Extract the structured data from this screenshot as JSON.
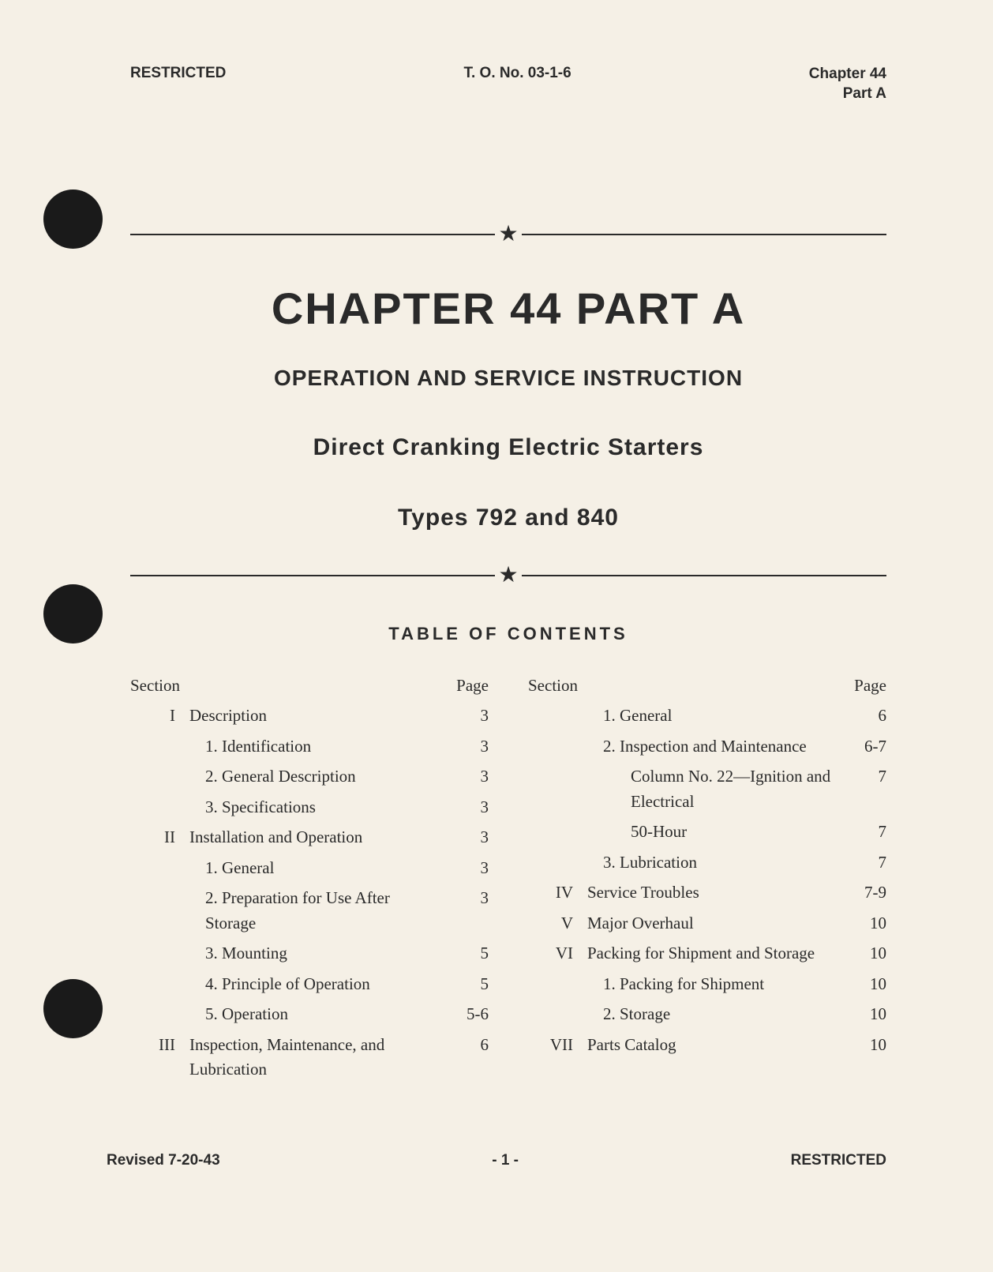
{
  "header": {
    "classification": "RESTRICTED",
    "doc_number": "T. O. No. 03-1-6",
    "chapter_line1": "Chapter 44",
    "chapter_line2": "Part A"
  },
  "title": {
    "chapter": "CHAPTER 44  PART A",
    "subtitle1": "OPERATION AND SERVICE INSTRUCTION",
    "subtitle2": "Direct Cranking Electric Starters",
    "subtitle3": "Types 792 and 840"
  },
  "toc": {
    "heading": "TABLE OF CONTENTS",
    "section_label": "Section",
    "page_label": "Page",
    "left": [
      {
        "section": "I",
        "title": "Description",
        "page": "3",
        "indent": 0
      },
      {
        "section": "",
        "title": "1. Identification",
        "page": "3",
        "indent": 1
      },
      {
        "section": "",
        "title": "2. General Description",
        "page": "3",
        "indent": 1
      },
      {
        "section": "",
        "title": "3. Specifications",
        "page": "3",
        "indent": 1
      },
      {
        "section": "II",
        "title": "Installation and Operation",
        "page": "3",
        "indent": 0
      },
      {
        "section": "",
        "title": "1. General",
        "page": "3",
        "indent": 1
      },
      {
        "section": "",
        "title": "2. Preparation for Use After Storage",
        "page": "3",
        "indent": 1
      },
      {
        "section": "",
        "title": "3. Mounting",
        "page": "5",
        "indent": 1
      },
      {
        "section": "",
        "title": "4. Principle of Operation",
        "page": "5",
        "indent": 1
      },
      {
        "section": "",
        "title": "5. Operation",
        "page": "5-6",
        "indent": 1
      },
      {
        "section": "III",
        "title": "Inspection, Maintenance, and Lubrication",
        "page": "6",
        "indent": 0
      }
    ],
    "right": [
      {
        "section": "",
        "title": "1. General",
        "page": "6",
        "indent": 1
      },
      {
        "section": "",
        "title": "2. Inspection and Maintenance",
        "page": "6-7",
        "indent": 1
      },
      {
        "section": "",
        "title": "Column No. 22—Ignition and Electrical",
        "page": "7",
        "indent": 2
      },
      {
        "section": "",
        "title": "50-Hour",
        "page": "7",
        "indent": 2
      },
      {
        "section": "",
        "title": "3. Lubrication",
        "page": "7",
        "indent": 1
      },
      {
        "section": "IV",
        "title": "Service Troubles",
        "page": "7-9",
        "indent": 0
      },
      {
        "section": "V",
        "title": "Major Overhaul",
        "page": "10",
        "indent": 0
      },
      {
        "section": "VI",
        "title": "Packing for Shipment and Storage",
        "page": "10",
        "indent": 0
      },
      {
        "section": "",
        "title": "1. Packing for Shipment",
        "page": "10",
        "indent": 1
      },
      {
        "section": "",
        "title": "2. Storage",
        "page": "10",
        "indent": 1
      },
      {
        "section": "VII",
        "title": "Parts Catalog",
        "page": "10",
        "indent": 0
      }
    ]
  },
  "footer": {
    "revision": "Revised 7-20-43",
    "page_num": "- 1 -",
    "classification": "RESTRICTED"
  },
  "colors": {
    "page_bg": "#f5f0e6",
    "text": "#2a2a2a",
    "hole": "#1a1a1a",
    "outer_bg": "#3a3a3a"
  }
}
